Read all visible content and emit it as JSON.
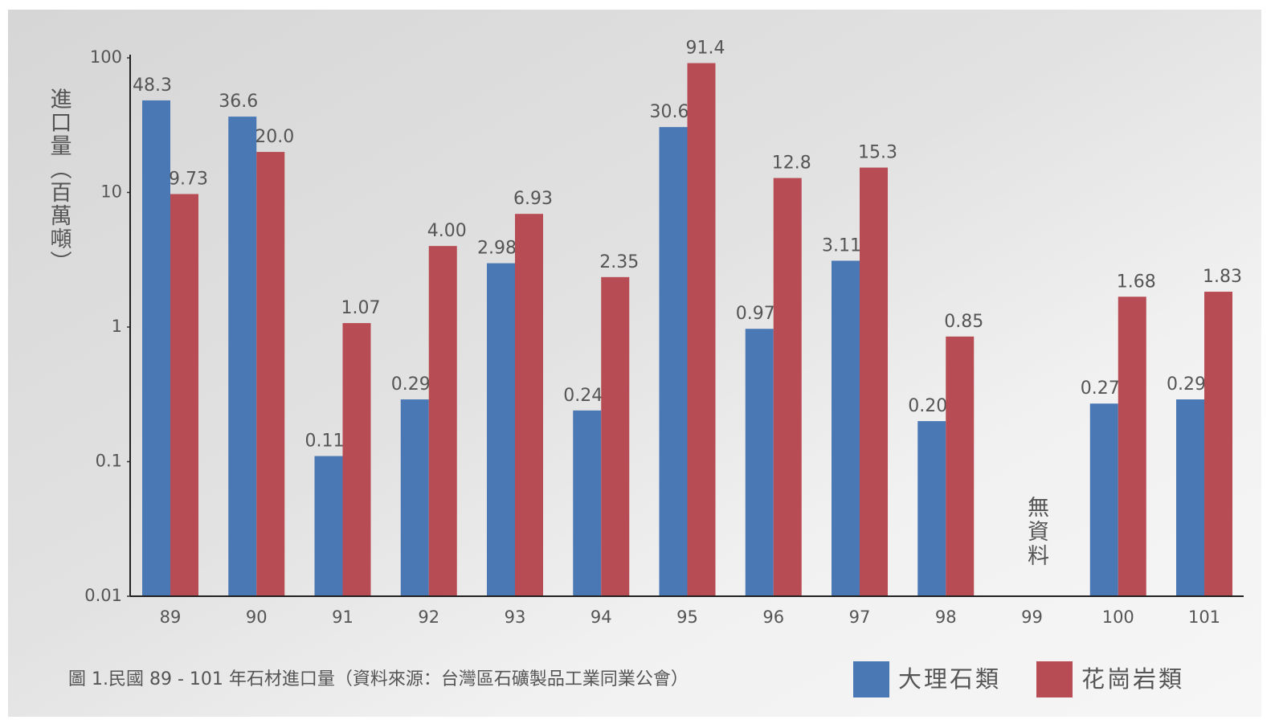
{
  "chart_data": {
    "type": "bar",
    "caption": "圖 1.民國 89 - 101 年石材進口量（資料來源：台灣區石礦製品工業同業公會）",
    "y_label": "進口量（百萬噸）",
    "categories": [
      "89",
      "90",
      "91",
      "92",
      "93",
      "94",
      "95",
      "96",
      "97",
      "98",
      "99",
      "100",
      "101"
    ],
    "series": [
      {
        "name": "大理石類",
        "color": "#4a78b5",
        "values": [
          48.3,
          36.6,
          0.11,
          0.29,
          2.98,
          0.24,
          30.6,
          0.97,
          3.11,
          0.2,
          null,
          0.27,
          0.29
        ],
        "value_labels": [
          "48.3",
          "36.6",
          "0.11",
          "0.29",
          "2.98",
          "0.24",
          "30.6",
          "0.97",
          "3.11",
          "0.20",
          null,
          "0.27",
          "0.29"
        ]
      },
      {
        "name": "花崗岩類",
        "color": "#b84c54",
        "values": [
          9.73,
          20.0,
          1.07,
          4.0,
          6.93,
          2.35,
          91.4,
          12.8,
          15.3,
          0.85,
          null,
          1.68,
          1.83
        ],
        "value_labels": [
          "9.73",
          "20.0",
          "1.07",
          "4.00",
          "6.93",
          "2.35",
          "91.4",
          "12.8",
          "15.3",
          "0.85",
          null,
          "1.68",
          "1.83"
        ]
      }
    ],
    "annotations": [
      {
        "text": "無資料",
        "category": "99"
      }
    ],
    "ylim": [
      0.01,
      100
    ],
    "yticks": [
      0.01,
      0.1,
      1,
      10,
      100
    ],
    "log_scale_y": true,
    "legend": "bottom-right"
  }
}
